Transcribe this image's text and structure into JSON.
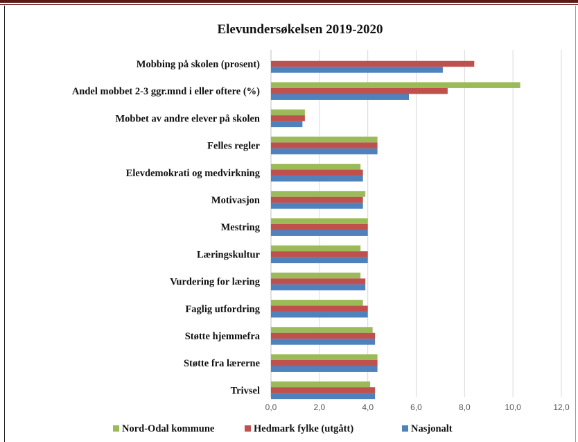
{
  "chart_data": {
    "type": "bar",
    "orientation": "horizontal",
    "title": "Elevundersøkelsen 2019-2020",
    "categories": [
      "Mobbing på skolen (prosent)",
      "Andel mobbet 2-3 ggr.mnd i eller oftere (%)",
      "Mobbet av andre elever på skolen",
      "Felles regler",
      "Elevdemokrati og medvirkning",
      "Motivasjon",
      "Mestring",
      "Læringskultur",
      "Vurdering for læring",
      "Faglig utfordring",
      "Støtte hjemmefra",
      "Støtte fra lærerne",
      "Trivsel"
    ],
    "series": [
      {
        "name": "Nord-Odal kommune",
        "color": "#9bbb59",
        "values": [
          null,
          10.3,
          1.4,
          4.4,
          3.7,
          3.9,
          4.0,
          3.7,
          3.7,
          3.8,
          4.2,
          4.4,
          4.1
        ]
      },
      {
        "name": "Hedmark fylke (utgått)",
        "color": "#c0504d",
        "values": [
          8.4,
          7.3,
          1.4,
          4.4,
          3.8,
          3.8,
          4.0,
          4.0,
          3.9,
          4.0,
          4.3,
          4.4,
          4.3
        ]
      },
      {
        "name": "Nasjonalt",
        "color": "#4f81bd",
        "values": [
          7.1,
          5.7,
          1.3,
          4.4,
          3.8,
          3.8,
          4.0,
          4.0,
          3.9,
          4.0,
          4.3,
          4.4,
          4.3
        ]
      }
    ],
    "xlim": [
      0,
      12
    ],
    "xticks": [
      "0,0",
      "2,0",
      "4,0",
      "6,0",
      "8,0",
      "10,0",
      "12,0"
    ],
    "grid": true,
    "legend_position": "bottom"
  }
}
